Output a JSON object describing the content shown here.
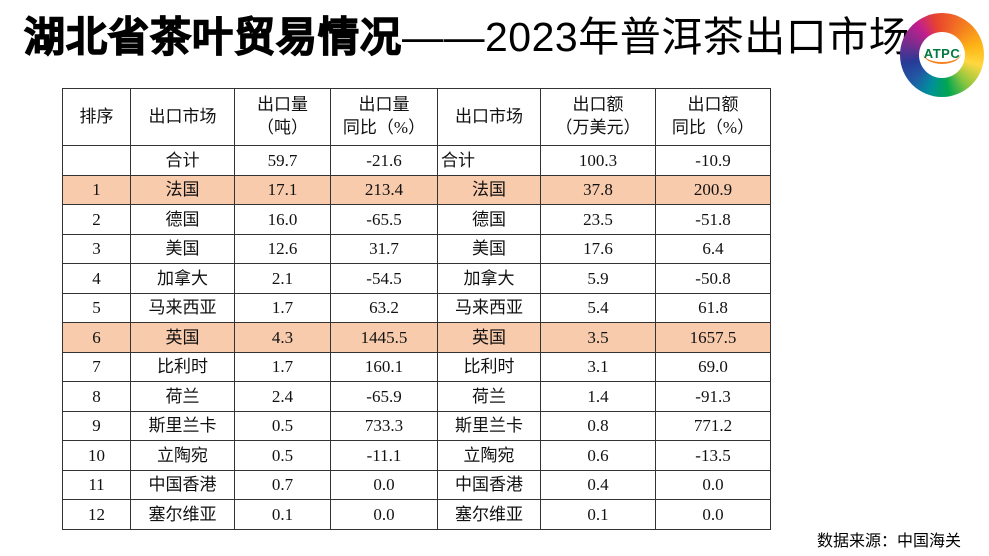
{
  "title": {
    "bold": "湖北省茶叶贸易情况",
    "light": "——2023年普洱茶出口市场"
  },
  "logo": {
    "text": "ATPC"
  },
  "source": {
    "label": "数据来源：中国海关"
  },
  "colors": {
    "highlight_row": "#F8CBAD",
    "table_border": "#333333",
    "logo_text_green": "#007A3E",
    "logo_underline_orange": "#F58220"
  },
  "table": {
    "headers": [
      {
        "l1": "排序",
        "l2": ""
      },
      {
        "l1": "出口市场",
        "l2": ""
      },
      {
        "l1": "出口量",
        "l2": "（吨）"
      },
      {
        "l1": "出口量",
        "l2": "同比（%）"
      },
      {
        "l1": "出口市场",
        "l2": ""
      },
      {
        "l1": "出口额",
        "l2": "（万美元）"
      },
      {
        "l1": "出口额",
        "l2": "同比（%）"
      }
    ],
    "rows": [
      {
        "rank": "",
        "market1": "合计",
        "volume": "59.7",
        "volume_yoy": "-21.6",
        "market2": "合计",
        "value": "100.3",
        "value_yoy": "-10.9",
        "highlight": false,
        "total": true
      },
      {
        "rank": "1",
        "market1": "法国",
        "volume": "17.1",
        "volume_yoy": "213.4",
        "market2": "法国",
        "value": "37.8",
        "value_yoy": "200.9",
        "highlight": true,
        "total": false
      },
      {
        "rank": "2",
        "market1": "德国",
        "volume": "16.0",
        "volume_yoy": "-65.5",
        "market2": "德国",
        "value": "23.5",
        "value_yoy": "-51.8",
        "highlight": false,
        "total": false
      },
      {
        "rank": "3",
        "market1": "美国",
        "volume": "12.6",
        "volume_yoy": "31.7",
        "market2": "美国",
        "value": "17.6",
        "value_yoy": "6.4",
        "highlight": false,
        "total": false
      },
      {
        "rank": "4",
        "market1": "加拿大",
        "volume": "2.1",
        "volume_yoy": "-54.5",
        "market2": "加拿大",
        "value": "5.9",
        "value_yoy": "-50.8",
        "highlight": false,
        "total": false
      },
      {
        "rank": "5",
        "market1": "马来西亚",
        "volume": "1.7",
        "volume_yoy": "63.2",
        "market2": "马来西亚",
        "value": "5.4",
        "value_yoy": "61.8",
        "highlight": false,
        "total": false
      },
      {
        "rank": "6",
        "market1": "英国",
        "volume": "4.3",
        "volume_yoy": "1445.5",
        "market2": "英国",
        "value": "3.5",
        "value_yoy": "1657.5",
        "highlight": true,
        "total": false
      },
      {
        "rank": "7",
        "market1": "比利时",
        "volume": "1.7",
        "volume_yoy": "160.1",
        "market2": "比利时",
        "value": "3.1",
        "value_yoy": "69.0",
        "highlight": false,
        "total": false
      },
      {
        "rank": "8",
        "market1": "荷兰",
        "volume": "2.4",
        "volume_yoy": "-65.9",
        "market2": "荷兰",
        "value": "1.4",
        "value_yoy": "-91.3",
        "highlight": false,
        "total": false
      },
      {
        "rank": "9",
        "market1": "斯里兰卡",
        "volume": "0.5",
        "volume_yoy": "733.3",
        "market2": "斯里兰卡",
        "value": "0.8",
        "value_yoy": "771.2",
        "highlight": false,
        "total": false
      },
      {
        "rank": "10",
        "market1": "立陶宛",
        "volume": "0.5",
        "volume_yoy": "-11.1",
        "market2": "立陶宛",
        "value": "0.6",
        "value_yoy": "-13.5",
        "highlight": false,
        "total": false
      },
      {
        "rank": "11",
        "market1": "中国香港",
        "volume": "0.7",
        "volume_yoy": "0.0",
        "market2": "中国香港",
        "value": "0.4",
        "value_yoy": "0.0",
        "highlight": false,
        "total": false
      },
      {
        "rank": "12",
        "market1": "塞尔维亚",
        "volume": "0.1",
        "volume_yoy": "0.0",
        "market2": "塞尔维亚",
        "value": "0.1",
        "value_yoy": "0.0",
        "highlight": false,
        "total": false
      }
    ]
  }
}
